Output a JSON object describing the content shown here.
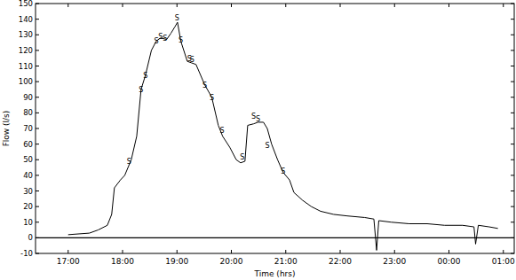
{
  "chart_data": {
    "type": "line",
    "x_label": "Time (hrs)",
    "y_label": "Flow (l/s)",
    "xlim": [
      16.4,
      25.2
    ],
    "ylim": [
      -10,
      150
    ],
    "xticks": [
      {
        "value": 17,
        "label": "17:00"
      },
      {
        "value": 18,
        "label": "18:00"
      },
      {
        "value": 19,
        "label": "19:00"
      },
      {
        "value": 20,
        "label": "20:00"
      },
      {
        "value": 21,
        "label": "21:00"
      },
      {
        "value": 22,
        "label": "22:00"
      },
      {
        "value": 23,
        "label": "23:00"
      },
      {
        "value": 24,
        "label": "00:00"
      },
      {
        "value": 25,
        "label": "01:00"
      }
    ],
    "yticks": [
      -10,
      0,
      10,
      20,
      30,
      40,
      50,
      60,
      70,
      80,
      90,
      100,
      110,
      120,
      130,
      140,
      150
    ],
    "hlines": [
      0
    ],
    "grid": false,
    "series": [
      {
        "type": "line",
        "color": "#000000",
        "x": [
          17.0,
          17.39,
          17.55,
          17.72,
          17.8,
          17.85,
          17.96,
          18.04,
          18.16,
          18.26,
          18.34,
          18.42,
          18.53,
          18.62,
          18.7,
          18.81,
          18.89,
          18.96,
          19.01,
          19.07,
          19.19,
          19.27,
          19.35,
          19.51,
          19.64,
          19.76,
          19.84,
          19.97,
          20.09,
          20.17,
          20.25,
          20.3,
          20.41,
          20.49,
          20.59,
          20.66,
          20.74,
          20.85,
          20.95,
          21.07,
          21.15,
          21.31,
          21.47,
          21.64,
          21.88,
          22.13,
          22.45,
          22.62,
          22.67,
          22.71,
          22.94,
          23.27,
          23.6,
          23.92,
          24.25,
          24.46,
          24.49,
          24.54,
          24.74,
          24.9
        ],
        "values": [
          2,
          3,
          5,
          8,
          15,
          32,
          37,
          40,
          50,
          65,
          95,
          104,
          120,
          126,
          128,
          127,
          131,
          135,
          138,
          126,
          113,
          112,
          111,
          98,
          90,
          72,
          65,
          58,
          50,
          48,
          49,
          72,
          73,
          74,
          74,
          70,
          60,
          50,
          42,
          37,
          29,
          24,
          20,
          17,
          15,
          14,
          13,
          12,
          -8,
          11,
          10,
          9,
          9,
          8,
          8,
          7,
          -4,
          8,
          7,
          6
        ]
      },
      {
        "type": "scatter",
        "marker": "S",
        "color": "#000000",
        "x": [
          18.12,
          18.34,
          18.42,
          18.62,
          18.7,
          18.78,
          19.0,
          19.07,
          19.23,
          19.28,
          19.51,
          19.64,
          19.83,
          20.2,
          20.41,
          20.49,
          20.66,
          20.95
        ],
        "values": [
          49,
          95,
          104,
          126,
          129,
          128,
          141,
          127,
          115,
          114,
          98,
          90,
          69,
          52,
          78,
          76,
          59,
          43
        ]
      }
    ]
  }
}
